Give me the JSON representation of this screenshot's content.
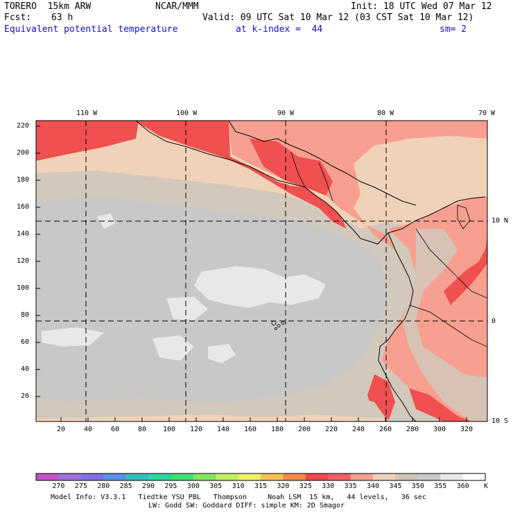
{
  "header": {
    "model": "TORERO  15km ARW",
    "org": "NCAR/MMM",
    "init": "Init: 18 UTC Wed 07 Mar 12",
    "fcst_label": "Fcst:",
    "fcst_value": "63 h",
    "valid": "Valid: 09 UTC Sat 10 Mar 12 (03 CST Sat 10 Mar 12)",
    "field": "Equivalent potential temperature",
    "level": "at k-index =  44",
    "smoothing": "sm= 2"
  },
  "map": {
    "top_lon_labels": [
      "110 W",
      "100 W",
      "90 W",
      "80 W",
      "70 W"
    ],
    "right_lat_labels": [
      "10 N",
      "0",
      "10 S"
    ],
    "left_y_labels": [
      "220",
      "200",
      "180",
      "160",
      "140",
      "120",
      "100",
      "80",
      "60",
      "40",
      "20"
    ],
    "bottom_x_labels": [
      "20",
      "40",
      "60",
      "80",
      "100",
      "120",
      "140",
      "160",
      "180",
      "200",
      "220",
      "240",
      "260",
      "280",
      "300",
      "320"
    ]
  },
  "colorbar": {
    "labels": [
      "270",
      "275",
      "280",
      "285",
      "290",
      "295",
      "300",
      "305",
      "310",
      "315",
      "320",
      "325",
      "330",
      "335",
      "340",
      "345",
      "350",
      "355",
      "360"
    ],
    "unit": "K",
    "colors": [
      "#c850c8",
      "#a070d8",
      "#8070e8",
      "#5890e8",
      "#30c0c0",
      "#28d8a0",
      "#40e070",
      "#80e860",
      "#c0f060",
      "#f0f060",
      "#f8c050",
      "#f88848",
      "#f04848",
      "#f06060",
      "#f8a090",
      "#f0d0b8",
      "#d0c4b8",
      "#c8c8c8",
      "#e8e8e8",
      "#ffffff"
    ]
  },
  "footer": {
    "line1": "Model Info: V3.3.1   Tiedtke YSU PBL   Thompson     Noah LSM  15 km,   44 levels,   36 sec",
    "line2": "LW: Godd SW: Goddard DIFF: simple KM: 2D Smagor"
  },
  "colors": {
    "ocean": "#c8c8c8",
    "warm": "#f0d2b8",
    "tan": "#d2c8bc",
    "light": "#e8e8e8",
    "pink": "#f8a090",
    "red": "#f05050"
  }
}
